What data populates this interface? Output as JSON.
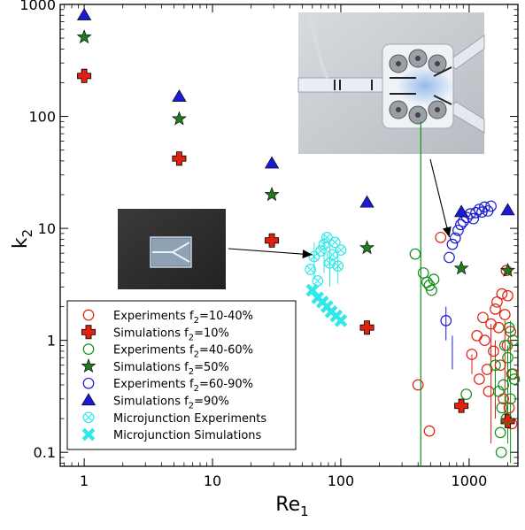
{
  "chart_data": {
    "type": "scatter",
    "x_scale": "log",
    "y_scale": "log",
    "xlim": [
      0.65,
      2400
    ],
    "ylim": [
      0.075,
      1000
    ],
    "xlabel_main": "Re",
    "xlabel_sub": "1",
    "ylabel_main": "k",
    "ylabel_sub": "2",
    "x_ticks": [
      {
        "value": 1,
        "label": "1"
      },
      {
        "value": 10,
        "label": "10"
      },
      {
        "value": 100,
        "label": "100"
      },
      {
        "value": 1000,
        "label": "1000"
      }
    ],
    "y_ticks": [
      {
        "value": 0.1,
        "label": "0.1"
      },
      {
        "value": 1,
        "label": "1"
      },
      {
        "value": 10,
        "label": "10"
      },
      {
        "value": 100,
        "label": "100"
      },
      {
        "value": 1000,
        "label": "1000"
      }
    ],
    "legend_position": "lower-left",
    "series": [
      {
        "name": "Experiments f2=10-40%",
        "label_prefix": "Experiments f",
        "label_sub": "2",
        "label_suffix": "=10-40%",
        "marker": "circle-open",
        "color": "#e02010",
        "points": [
          [
            400,
            0.4
          ],
          [
            490,
            0.155
          ],
          [
            600,
            8.3
          ],
          [
            1050,
            0.75
          ],
          [
            1150,
            1.1
          ],
          [
            1200,
            0.45
          ],
          [
            1280,
            1.6
          ],
          [
            1320,
            1.0
          ],
          [
            1380,
            0.55
          ],
          [
            1420,
            0.35
          ],
          [
            1480,
            1.4
          ],
          [
            1550,
            0.8
          ],
          [
            1600,
            1.9
          ],
          [
            1650,
            2.2
          ],
          [
            1700,
            1.3
          ],
          [
            1750,
            0.6
          ],
          [
            1800,
            2.6
          ],
          [
            1850,
            0.3
          ],
          [
            1900,
            1.7
          ],
          [
            1950,
            4.2
          ],
          [
            1980,
            0.9
          ],
          [
            2000,
            2.5
          ],
          [
            2050,
            0.25
          ],
          [
            2100,
            1.2
          ],
          [
            2150,
            0.18
          ],
          [
            2200,
            0.5
          ]
        ]
      },
      {
        "name": "Simulations f2=10%",
        "label_prefix": "Simulations f",
        "label_sub": "2",
        "label_suffix": "=10%",
        "marker": "plus-filled",
        "color": "#e02010",
        "points": [
          [
            1,
            230
          ],
          [
            5.5,
            42
          ],
          [
            29,
            7.8
          ],
          [
            160,
            1.3
          ],
          [
            870,
            0.26
          ],
          [
            2000,
            0.19
          ]
        ]
      },
      {
        "name": "Experiments f2=40-60%",
        "label_prefix": "Experiments f",
        "label_sub": "2",
        "label_suffix": "=40-60%",
        "marker": "circle-open",
        "color": "#10901a",
        "points": [
          [
            380,
            5.9
          ],
          [
            440,
            4.0
          ],
          [
            470,
            3.3
          ],
          [
            490,
            3.1
          ],
          [
            510,
            2.8
          ],
          [
            530,
            3.5
          ],
          [
            950,
            0.33
          ],
          [
            1600,
            0.6
          ],
          [
            1700,
            0.35
          ],
          [
            1750,
            0.15
          ],
          [
            1800,
            0.25
          ],
          [
            1850,
            0.4
          ],
          [
            1900,
            0.9
          ],
          [
            1950,
            0.2
          ],
          [
            2000,
            0.7
          ],
          [
            2050,
            1.3
          ],
          [
            2100,
            0.3
          ],
          [
            2150,
            0.5
          ],
          [
            2200,
            1.0
          ],
          [
            2250,
            0.45
          ],
          [
            1780,
            0.1
          ]
        ]
      },
      {
        "name": "Simulations f2=50%",
        "label_prefix": "Simulations f",
        "label_sub": "2",
        "label_suffix": "=50%",
        "marker": "star",
        "color": "#207a20",
        "points": [
          [
            1,
            510
          ],
          [
            5.5,
            95
          ],
          [
            29,
            20
          ],
          [
            160,
            6.7
          ],
          [
            870,
            4.4
          ],
          [
            2000,
            4.2
          ]
        ]
      },
      {
        "name": "Experiments f2=60-90%",
        "label_prefix": "Experiments f",
        "label_sub": "2",
        "label_suffix": "=60-90%",
        "marker": "circle-open",
        "color": "#1a1ad0",
        "points": [
          [
            660,
            1.5
          ],
          [
            700,
            5.5
          ],
          [
            740,
            7.2
          ],
          [
            780,
            8.2
          ],
          [
            820,
            9.6
          ],
          [
            860,
            10.8
          ],
          [
            900,
            11.5
          ],
          [
            960,
            12.5
          ],
          [
            1020,
            13.5
          ],
          [
            1080,
            12.2
          ],
          [
            1130,
            13.8
          ],
          [
            1200,
            14.8
          ],
          [
            1260,
            14.0
          ],
          [
            1320,
            15.5
          ],
          [
            1400,
            14.3
          ],
          [
            1480,
            15.8
          ]
        ]
      },
      {
        "name": "Simulations f2=90%",
        "label_prefix": "Simulations f",
        "label_sub": "2",
        "label_suffix": "=90%",
        "marker": "triangle",
        "color": "#1a1ad0",
        "points": [
          [
            1,
            800
          ],
          [
            5.5,
            150
          ],
          [
            29,
            38
          ],
          [
            160,
            17
          ],
          [
            870,
            14
          ],
          [
            2000,
            14.5
          ]
        ]
      },
      {
        "name": "Microjunction Experiments",
        "label_prefix": "Microjunction Experiments",
        "label_sub": "",
        "label_suffix": "",
        "marker": "circle-x-open",
        "color": "#30e8e8",
        "points": [
          [
            58,
            4.3
          ],
          [
            62,
            5.6
          ],
          [
            66,
            3.4
          ],
          [
            70,
            6.3
          ],
          [
            74,
            7.2
          ],
          [
            78,
            8.3
          ],
          [
            82,
            4.9
          ],
          [
            86,
            5.8
          ],
          [
            90,
            7.5
          ],
          [
            95,
            4.6
          ],
          [
            100,
            6.4
          ]
        ]
      },
      {
        "name": "Microjunction Simulations",
        "label_prefix": "Microjunction Simulations",
        "label_sub": "",
        "label_suffix": "",
        "marker": "x-filled",
        "color": "#30e8e8",
        "points": [
          [
            60,
            2.8
          ],
          [
            66,
            2.4
          ],
          [
            72,
            2.2
          ],
          [
            78,
            2.0
          ],
          [
            84,
            1.8
          ],
          [
            92,
            1.65
          ],
          [
            100,
            1.5
          ]
        ]
      }
    ],
    "error_bars": [
      {
        "color": "#e02010",
        "x": 1050,
        "y_low": 0.5,
        "y_high": 0.75
      },
      {
        "color": "#e02010",
        "x": 1480,
        "y_low": 0.12,
        "y_high": 1.4
      },
      {
        "color": "#e02010",
        "x": 1600,
        "y_low": 0.2,
        "y_high": 1.0
      },
      {
        "color": "#e02010",
        "x": 1900,
        "y_low": 0.18,
        "y_high": 1.5
      },
      {
        "color": "#10901a",
        "x": 1600,
        "y_low": 0.3,
        "y_high": 0.7
      },
      {
        "color": "#10901a",
        "x": 2000,
        "y_low": 0.12,
        "y_high": 0.9
      },
      {
        "color": "#10901a",
        "x": 2100,
        "y_low": 0.08,
        "y_high": 1.5
      },
      {
        "color": "#1a1ad0",
        "x": 660,
        "y_low": 1.0,
        "y_high": 2.0
      },
      {
        "color": "#1a1ad0",
        "x": 740,
        "y_low": 0.55,
        "y_high": 1.1
      },
      {
        "color": "#30e8e8",
        "x": 62,
        "y_low": 3.5,
        "y_high": 7.5
      },
      {
        "color": "#30e8e8",
        "x": 74,
        "y_low": 4.0,
        "y_high": 9.0
      },
      {
        "color": "#30e8e8",
        "x": 82,
        "y_low": 3.0,
        "y_high": 7.0
      },
      {
        "color": "#30e8e8",
        "x": 95,
        "y_low": 3.2,
        "y_high": 6.5
      }
    ],
    "vertical_line": {
      "color": "#10901a",
      "x": 420,
      "y_low": 0.075,
      "y_high": 90
    },
    "inset_photos": [
      {
        "subject": "microjunction-chip-photo",
        "points_to": {
          "x": 60,
          "y": 7.5
        }
      },
      {
        "subject": "junction-device-photo",
        "points_to": {
          "x": 700,
          "y": 9
        }
      }
    ]
  }
}
